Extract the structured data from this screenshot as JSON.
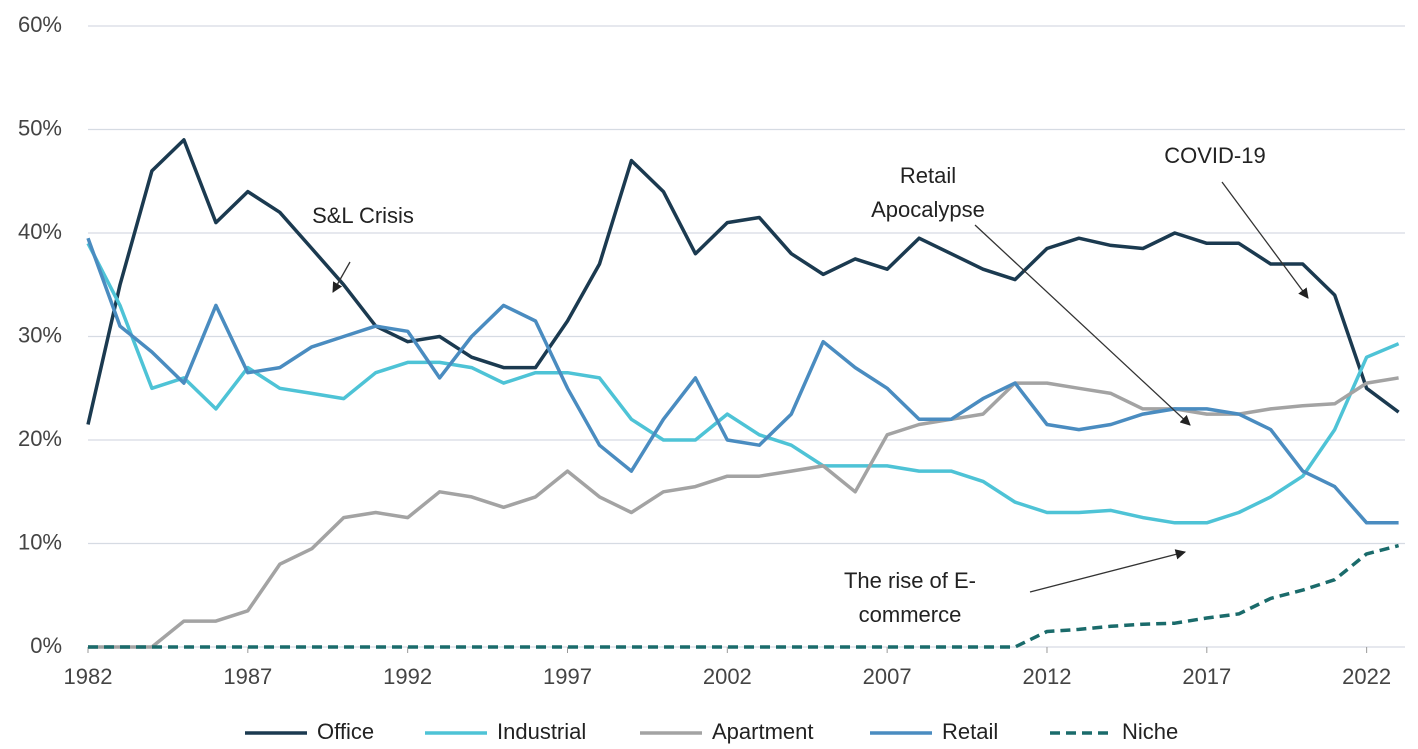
{
  "chart_data": {
    "type": "line",
    "x": [
      1982,
      1983,
      1984,
      1985,
      1986,
      1987,
      1988,
      1989,
      1990,
      1991,
      1992,
      1993,
      1994,
      1995,
      1996,
      1997,
      1998,
      1999,
      2000,
      2001,
      2002,
      2003,
      2004,
      2005,
      2006,
      2007,
      2008,
      2009,
      2010,
      2011,
      2012,
      2013,
      2014,
      2015,
      2016,
      2017,
      2018,
      2019,
      2020,
      2021,
      2022,
      2023
    ],
    "xlim": [
      1982,
      2023.2
    ],
    "xticks": [
      1982,
      1987,
      1992,
      1997,
      2002,
      2007,
      2012,
      2017,
      2022
    ],
    "ylim": [
      0,
      60
    ],
    "yticks": [
      {
        "value": 0,
        "label": "0%"
      },
      {
        "value": 10,
        "label": "10%"
      },
      {
        "value": 20,
        "label": "20%"
      },
      {
        "value": 30,
        "label": "30%"
      },
      {
        "value": 40,
        "label": "40%"
      },
      {
        "value": 50,
        "label": "50%"
      },
      {
        "value": 60,
        "label": "60%"
      }
    ],
    "grid": true,
    "legend": "bottom",
    "series": [
      {
        "name": "Office",
        "color": "#1b3a50",
        "values": [
          21.5,
          35,
          46,
          49,
          41,
          44,
          42,
          38.5,
          35,
          31,
          29.5,
          30,
          28,
          27,
          27,
          31.5,
          37,
          47,
          44,
          38,
          41,
          41.5,
          38,
          36,
          37.5,
          36.5,
          39.5,
          38,
          36.5,
          35.5,
          38.5,
          39.5,
          38.8,
          38.5,
          40,
          39,
          39,
          37,
          37,
          34,
          25,
          22.7
        ]
      },
      {
        "name": "Industrial",
        "color": "#4ec3d6",
        "values": [
          39,
          33,
          25,
          26,
          23,
          27,
          25,
          24.5,
          24,
          26.5,
          27.5,
          27.5,
          27,
          25.5,
          26.5,
          26.5,
          26,
          22,
          20,
          20,
          22.5,
          20.5,
          19.5,
          17.5,
          17.5,
          17.5,
          17,
          17,
          16,
          14,
          13,
          13,
          13.2,
          12.5,
          12,
          12,
          13,
          14.5,
          16.5,
          21,
          28,
          29.3
        ]
      },
      {
        "name": "Apartment",
        "color": "#a3a3a3",
        "values": [
          0,
          0,
          0,
          2.5,
          2.5,
          3.5,
          8,
          9.5,
          12.5,
          13,
          12.5,
          15,
          14.5,
          13.5,
          14.5,
          17,
          14.5,
          13,
          15,
          15.5,
          16.5,
          16.5,
          17,
          17.5,
          15,
          20.5,
          21.5,
          22,
          22.5,
          25.5,
          25.5,
          25,
          24.5,
          23,
          23,
          22.5,
          22.5,
          23,
          23.3,
          23.5,
          25.5,
          26
        ]
      },
      {
        "name": "Retail",
        "color": "#4a8cc0",
        "values": [
          39.5,
          31,
          28.5,
          25.5,
          33,
          26.5,
          27,
          29,
          30,
          31,
          30.5,
          26,
          30,
          33,
          31.5,
          25,
          19.5,
          17,
          22,
          26,
          20,
          19.5,
          22.5,
          29.5,
          27,
          25,
          22,
          22,
          24,
          25.5,
          21.5,
          21,
          21.5,
          22.5,
          23,
          23,
          22.5,
          21,
          17,
          15.5,
          12,
          12
        ]
      },
      {
        "name": "Niche",
        "color": "#1a6b6b",
        "dashed": true,
        "values": [
          0,
          0,
          0,
          0,
          0,
          0,
          0,
          0,
          0,
          0,
          0,
          0,
          0,
          0,
          0,
          0,
          0,
          0,
          0,
          0,
          0,
          0,
          0,
          0,
          0,
          0,
          0,
          0,
          0,
          0,
          1.5,
          1.7,
          2,
          2.2,
          2.3,
          2.8,
          3.2,
          4.7,
          5.5,
          6.5,
          9,
          9.8
        ]
      }
    ],
    "annotations": [
      {
        "lines": [
          "S&L Crisis"
        ]
      },
      {
        "lines": [
          "Retail",
          "Apocalypse"
        ]
      },
      {
        "lines": [
          "COVID-19"
        ]
      },
      {
        "lines": [
          "The rise of E-",
          "commerce"
        ]
      }
    ]
  }
}
